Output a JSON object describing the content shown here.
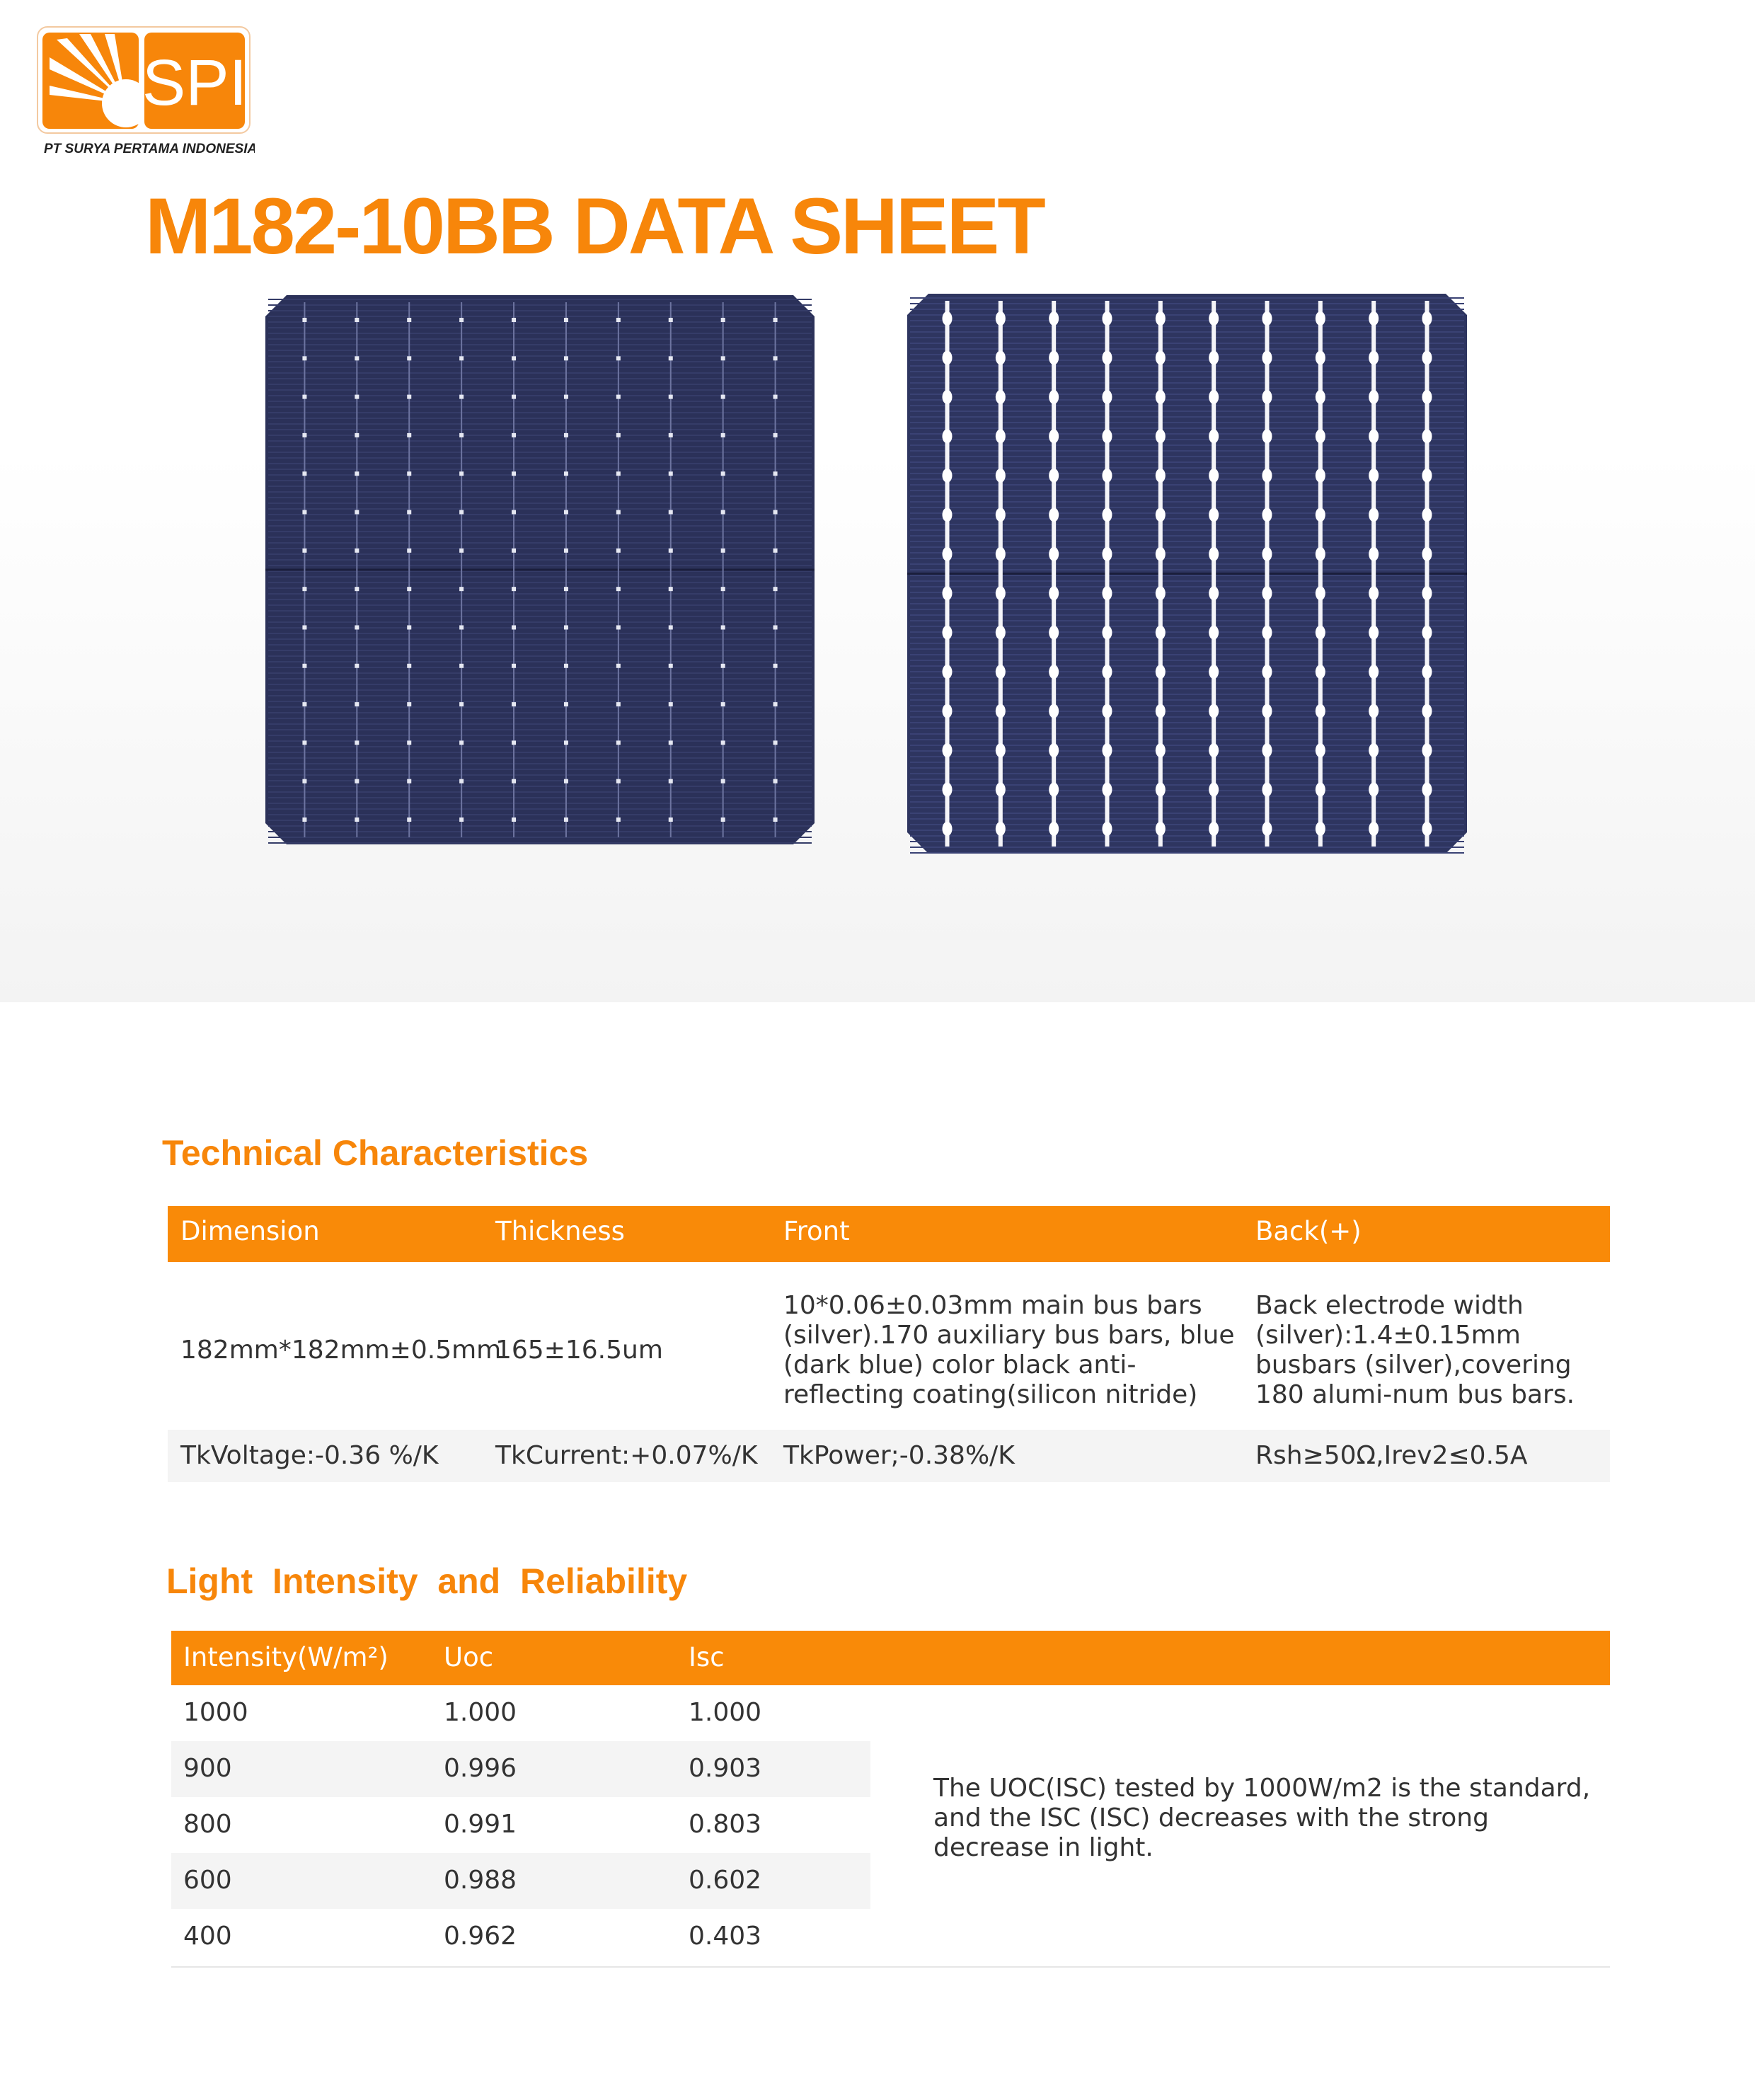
{
  "header": {
    "logo_text": "SPI",
    "company": "PT SURYA PERTAMA INDONESIA",
    "title": "M182-10BB DATA SHEET"
  },
  "technical": {
    "heading": "Technical Characteristics",
    "columns": [
      "Dimension",
      "Thickness",
      "Front",
      "Back(+)"
    ],
    "rows": [
      [
        "182mm*182mm±0.5mm",
        "165±16.5um",
        "10*0.06±0.03mm main bus bars (silver).170 auxiliary bus bars, blue (dark blue) color black anti-reflecting coating(silicon nitride)",
        "Back electrode width (silver):1.4±0.15mm busbars (silver),covering 180 alumi-num bus bars."
      ],
      [
        "TkVoltage:-0.36 %/K",
        "TkCurrent:+0.07%/K",
        "TkPower;-0.38%/K",
        "Rsh≥50Ω,Irev2≤0.5A"
      ]
    ]
  },
  "light": {
    "heading": "Light  Intensity  and  Reliability",
    "columns": [
      "Intensity(W/m²)",
      "Uoc",
      "Isc"
    ],
    "rows": [
      [
        "1000",
        "1.000",
        "1.000"
      ],
      [
        "900",
        "0.996",
        "0.903"
      ],
      [
        "800",
        "0.991",
        "0.803"
      ],
      [
        "600",
        "0.988",
        "0.602"
      ],
      [
        "400",
        "0.962",
        "0.403"
      ]
    ],
    "note": "The UOC(ISC) tested by 1000W/m2 is the standard, and the ISC (ISC) decreases with the strong decrease in light."
  }
}
